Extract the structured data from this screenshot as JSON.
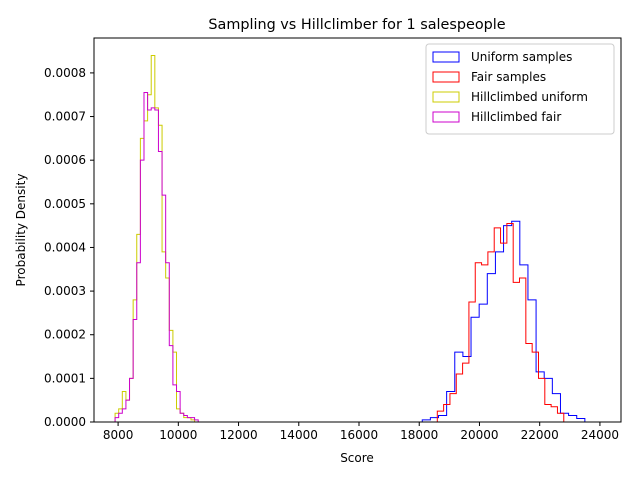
{
  "chart_data": {
    "type": "step-histogram",
    "title": "Sampling vs Hillclimber for 1 salespeople",
    "xlabel": "Score",
    "ylabel": "Probability Density",
    "xlim": [
      7200,
      24700
    ],
    "ylim": [
      0,
      0.00088
    ],
    "x_ticks": [
      8000,
      10000,
      12000,
      14000,
      16000,
      18000,
      20000,
      22000,
      24000
    ],
    "x_tick_labels": [
      "8000",
      "10000",
      "12000",
      "14000",
      "16000",
      "18000",
      "20000",
      "22000",
      "24000"
    ],
    "y_ticks": [
      0,
      0.0001,
      0.0002,
      0.0003,
      0.0004,
      0.0005,
      0.0006,
      0.0007,
      0.0008
    ],
    "y_tick_labels": [
      "0.0000",
      "0.0001",
      "0.0002",
      "0.0003",
      "0.0004",
      "0.0005",
      "0.0006",
      "0.0007",
      "0.0008"
    ],
    "grid": false,
    "legend_placement": "top-right",
    "series": [
      {
        "name": "Uniform samples",
        "color": "#0000ff",
        "bin_edges": [
          18100,
          18370,
          18640,
          18910,
          19180,
          19450,
          19720,
          19990,
          20260,
          20530,
          20800,
          21070,
          21340,
          21610,
          21880,
          22150,
          22420,
          22690,
          22960,
          23230,
          23500,
          23770
        ],
        "values": [
          5e-06,
          1e-05,
          1.5e-05,
          7e-05,
          0.00016,
          0.00015,
          0.00024,
          0.00027,
          0.00034,
          0.00039,
          0.00045,
          0.00046,
          0.00036,
          0.00028,
          0.000115,
          0.0001,
          6.5e-05,
          2e-05,
          1.5e-05,
          8e-06,
          0.0
        ]
      },
      {
        "name": "Fair samples",
        "color": "#ff0000",
        "bin_edges": [
          18600,
          18810,
          19020,
          19230,
          19440,
          19650,
          19860,
          20070,
          20280,
          20490,
          20700,
          20910,
          21120,
          21330,
          21540,
          21750,
          21960,
          22170,
          22380,
          22590,
          22800,
          23010,
          23220,
          23430
        ],
        "values": [
          2.5e-05,
          4e-05,
          6.5e-05,
          0.00011,
          0.000135,
          0.000275,
          0.000365,
          0.00036,
          0.00039,
          0.000445,
          0.00041,
          0.000455,
          0.00032,
          0.00033,
          0.00018,
          0.00016,
          0.0001,
          4e-05,
          3.5e-05,
          2e-05,
          0.0,
          0.0,
          0.0
        ]
      },
      {
        "name": "Hillclimbed uniform",
        "color": "#cccc00",
        "bin_edges": [
          7900,
          8020,
          8140,
          8260,
          8380,
          8500,
          8620,
          8740,
          8860,
          8980,
          9100,
          9220,
          9340,
          9460,
          9580,
          9700,
          9820,
          9940,
          10060,
          10180,
          10300,
          10420,
          10540,
          10660,
          10780,
          10900
        ],
        "values": [
          2e-05,
          3e-05,
          7e-05,
          5e-05,
          0.0001,
          0.00028,
          0.00043,
          0.00065,
          0.00069,
          0.00075,
          0.00084,
          0.00072,
          0.00068,
          0.00039,
          0.00033,
          0.00021,
          0.00016,
          3e-05,
          2e-05,
          1e-05,
          1e-05,
          5e-06,
          0.0,
          0.0,
          0.0
        ]
      },
      {
        "name": "Hillclimbed fair",
        "color": "#cc00cc",
        "bin_edges": [
          7900,
          8020,
          8140,
          8260,
          8380,
          8500,
          8620,
          8740,
          8860,
          8980,
          9100,
          9220,
          9340,
          9460,
          9580,
          9700,
          9820,
          9940,
          10060,
          10180,
          10300,
          10420,
          10540,
          10660,
          10780,
          10900,
          11050
        ],
        "values": [
          1e-05,
          2e-05,
          3e-05,
          5e-05,
          0.0001,
          0.000235,
          0.000365,
          0.0006,
          0.000755,
          0.000715,
          0.00072,
          0.000715,
          0.00062,
          0.00052,
          0.000365,
          0.000175,
          8.5e-05,
          7e-05,
          2e-05,
          1.5e-05,
          1e-05,
          1e-05,
          5e-06,
          0.0,
          0.0,
          0.0
        ]
      }
    ]
  }
}
